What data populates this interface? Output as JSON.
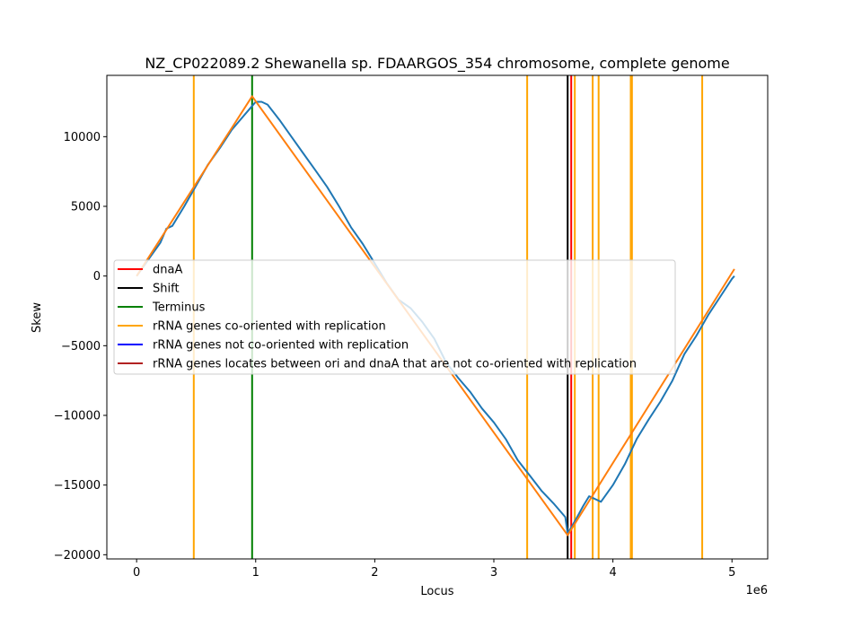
{
  "chart_data": {
    "type": "line",
    "title": "NZ_CP022089.2 Shewanella sp. FDAARGOS_354 chromosome, complete genome",
    "xlabel": "Locus",
    "ylabel": "Skew",
    "x_offset_label": "1e6",
    "xlim": [
      -250000,
      5300000
    ],
    "ylim": [
      -20300,
      14400
    ],
    "x_ticks": [
      0,
      1000000,
      2000000,
      3000000,
      4000000,
      5000000
    ],
    "x_tick_labels": [
      "0",
      "1",
      "2",
      "3",
      "4",
      "5"
    ],
    "y_ticks": [
      -20000,
      -15000,
      -10000,
      -5000,
      0,
      5000,
      10000
    ],
    "y_tick_labels": [
      "−20000",
      "−15000",
      "−10000",
      "−5000",
      "0",
      "5000",
      "10000"
    ],
    "grid": false,
    "legend_position": "center-left",
    "series": [
      {
        "name": "",
        "color": "#1f77b4",
        "points": [
          [
            0,
            0
          ],
          [
            100000,
            1200
          ],
          [
            200000,
            2400
          ],
          [
            250000,
            3400
          ],
          [
            300000,
            3600
          ],
          [
            400000,
            5000
          ],
          [
            500000,
            6500
          ],
          [
            600000,
            8000
          ],
          [
            700000,
            9200
          ],
          [
            800000,
            10500
          ],
          [
            900000,
            11500
          ],
          [
            950000,
            12000
          ],
          [
            1000000,
            12500
          ],
          [
            1050000,
            12500
          ],
          [
            1100000,
            12300
          ],
          [
            1200000,
            11200
          ],
          [
            1300000,
            10000
          ],
          [
            1400000,
            8800
          ],
          [
            1500000,
            7600
          ],
          [
            1600000,
            6400
          ],
          [
            1700000,
            5000
          ],
          [
            1800000,
            3500
          ],
          [
            1900000,
            2300
          ],
          [
            2000000,
            900
          ],
          [
            2100000,
            -500
          ],
          [
            2200000,
            -1700
          ],
          [
            2300000,
            -2300
          ],
          [
            2400000,
            -3300
          ],
          [
            2500000,
            -4500
          ],
          [
            2600000,
            -6200
          ],
          [
            2700000,
            -7300
          ],
          [
            2800000,
            -8300
          ],
          [
            2900000,
            -9500
          ],
          [
            3000000,
            -10500
          ],
          [
            3100000,
            -11700
          ],
          [
            3200000,
            -13200
          ],
          [
            3300000,
            -14300
          ],
          [
            3400000,
            -15400
          ],
          [
            3500000,
            -16300
          ],
          [
            3600000,
            -17300
          ],
          [
            3620000,
            -18500
          ],
          [
            3700000,
            -17300
          ],
          [
            3750000,
            -16500
          ],
          [
            3800000,
            -15800
          ],
          [
            3900000,
            -16200
          ],
          [
            4000000,
            -15000
          ],
          [
            4100000,
            -13500
          ],
          [
            4200000,
            -11700
          ],
          [
            4300000,
            -10300
          ],
          [
            4400000,
            -9000
          ],
          [
            4500000,
            -7500
          ],
          [
            4600000,
            -5600
          ],
          [
            4700000,
            -4300
          ],
          [
            4800000,
            -2800
          ],
          [
            4900000,
            -1500
          ],
          [
            5000000,
            -200
          ],
          [
            5020000,
            0
          ]
        ]
      },
      {
        "name": "",
        "color": "#ff7f0e",
        "points": [
          [
            0,
            0
          ],
          [
            970000,
            12900
          ],
          [
            3620000,
            -18600
          ],
          [
            5020000,
            500
          ]
        ]
      }
    ],
    "vertical_lines": [
      {
        "name": "dnaA",
        "color": "#ff0000",
        "x": [
          3650000
        ]
      },
      {
        "name": "Shift",
        "color": "#000000",
        "x": [
          3620000
        ]
      },
      {
        "name": "Terminus",
        "color": "#008000",
        "x": [
          970000
        ]
      },
      {
        "name": "rRNA genes co-oriented with replication",
        "color": "#ffa500",
        "x": [
          480000,
          3280000,
          3680000,
          3830000,
          3880000,
          4150000,
          4160000,
          4750000
        ]
      },
      {
        "name": "rRNA genes not co-oriented with replication",
        "color": "#0000ff",
        "x": []
      },
      {
        "name": "rRNA genes locates between ori and dnaA that are not co-oriented with replication",
        "color": "#b22222",
        "x": []
      }
    ]
  }
}
